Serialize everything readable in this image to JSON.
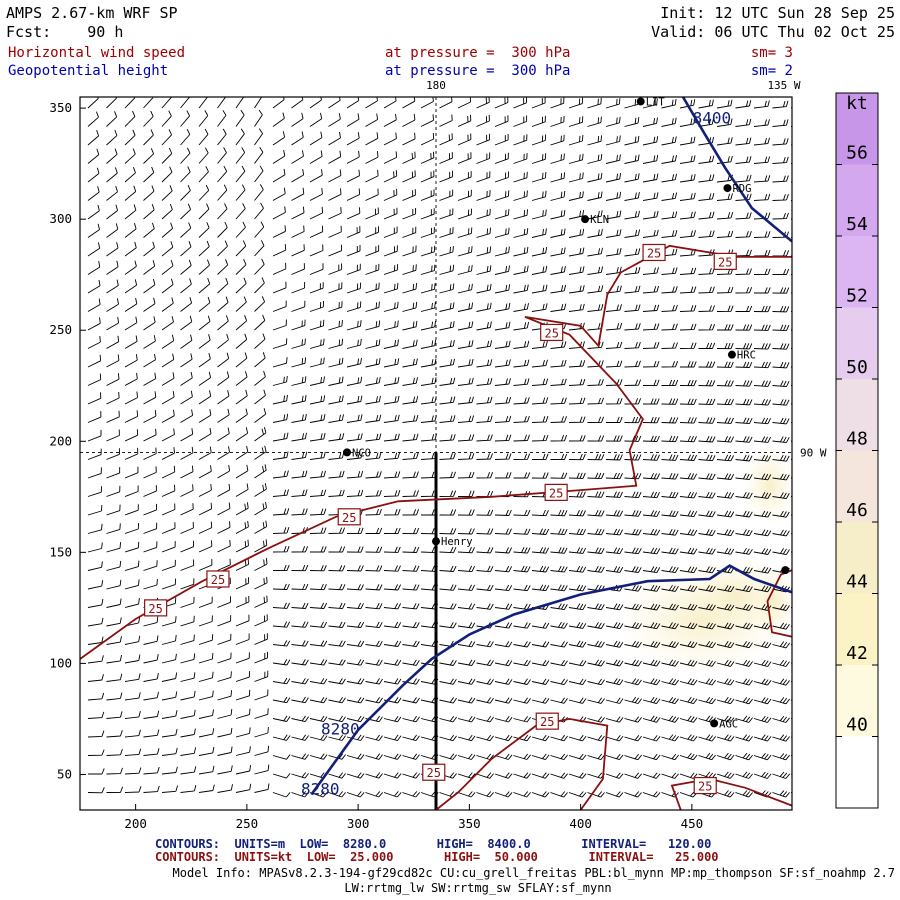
{
  "header": {
    "model": "AMPS 2.67-km WRF SP",
    "forecast": "Fcst:    90 h",
    "init": "Init: 12 UTC Sun 28 Sep 25",
    "valid": "Valid: 06 UTC Thu 02 Oct 25",
    "field1": "Horizontal wind speed",
    "field1_level": "at pressure =  300 hPa",
    "field1_sm": "sm= 3",
    "field2": "Geopotential height",
    "field2_level": "at pressure =  300 hPa",
    "field2_sm": "sm= 2"
  },
  "colors": {
    "title": "#000000",
    "wind_label": "#a00000",
    "height_label": "#0000b0",
    "height_contour": "#12207a",
    "wind_contour": "#8b1010",
    "barb": "#000000",
    "frame": "#000000"
  },
  "chart_data": {
    "type": "contour_map",
    "x_ticks": [
      200,
      250,
      300,
      350,
      400,
      450
    ],
    "y_ticks": [
      50,
      100,
      150,
      200,
      250,
      300,
      350
    ],
    "x_range": [
      175,
      495
    ],
    "y_range": [
      34,
      355
    ],
    "grid_lines": [
      {
        "label": "180",
        "axis": "x",
        "value": 335
      },
      {
        "label": "90 W",
        "axis": "y",
        "value": 195
      }
    ],
    "meridian_label_top": "135 W",
    "stations": [
      {
        "name": "LIT",
        "x": 427,
        "y": 353
      },
      {
        "name": "RDG",
        "x": 466,
        "y": 314
      },
      {
        "name": "KLN",
        "x": 402,
        "y": 300
      },
      {
        "name": "HRC",
        "x": 468,
        "y": 239
      },
      {
        "name": "NCO",
        "x": 295,
        "y": 195
      },
      {
        "name": "Henry",
        "x": 335,
        "y": 155
      },
      {
        "name": "AGC",
        "x": 460,
        "y": 73
      },
      {
        "name": "",
        "x": 492,
        "y": 142
      }
    ],
    "height_contour_labels": [
      {
        "text": "8400",
        "x": 459,
        "y": 343
      },
      {
        "text": "8280",
        "x": 292,
        "y": 68
      },
      {
        "text": "8280",
        "x": 283,
        "y": 41
      }
    ],
    "wind_contour_labels": [
      {
        "text": "25",
        "x": 209,
        "y": 125
      },
      {
        "text": "25",
        "x": 237,
        "y": 138
      },
      {
        "text": "25",
        "x": 296,
        "y": 166
      },
      {
        "text": "25",
        "x": 389,
        "y": 177
      },
      {
        "text": "25",
        "x": 387,
        "y": 249
      },
      {
        "text": "25",
        "x": 433,
        "y": 285
      },
      {
        "text": "25",
        "x": 465,
        "y": 281
      },
      {
        "text": "25",
        "x": 385,
        "y": 74
      },
      {
        "text": "25",
        "x": 334,
        "y": 51
      },
      {
        "text": "25",
        "x": 456,
        "y": 45
      }
    ],
    "height_contours": [
      {
        "value": 8280,
        "points": [
          [
            279,
            41
          ],
          [
            300,
            70
          ],
          [
            320,
            90
          ],
          [
            333,
            102
          ],
          [
            350,
            113
          ],
          [
            370,
            122
          ],
          [
            400,
            131
          ],
          [
            430,
            137
          ],
          [
            458,
            138
          ],
          [
            467,
            144
          ],
          [
            478,
            138
          ],
          [
            495,
            132
          ]
        ]
      },
      {
        "value": 8400,
        "points": [
          [
            446,
            355
          ],
          [
            456,
            338
          ],
          [
            465,
            323
          ],
          [
            477,
            305
          ],
          [
            495,
            290
          ]
        ]
      }
    ],
    "wind_contours": [
      {
        "value": 25,
        "points": [
          [
            175,
            102
          ],
          [
            200,
            120
          ],
          [
            230,
            137
          ],
          [
            260,
            152
          ],
          [
            290,
            166
          ],
          [
            318,
            173
          ],
          [
            360,
            175
          ],
          [
            400,
            178
          ],
          [
            425,
            180
          ],
          [
            422,
            196
          ],
          [
            428,
            210
          ],
          [
            416,
            226
          ],
          [
            395,
            248
          ],
          [
            375,
            256
          ],
          [
            400,
            252
          ],
          [
            408,
            243
          ],
          [
            412,
            266
          ],
          [
            418,
            276
          ],
          [
            440,
            288
          ],
          [
            470,
            283
          ],
          [
            495,
            283
          ]
        ]
      },
      {
        "value": 25,
        "points": [
          [
            335,
            34
          ],
          [
            345,
            42
          ],
          [
            360,
            57
          ],
          [
            380,
            72
          ],
          [
            395,
            75
          ],
          [
            412,
            72
          ],
          [
            410,
            48
          ],
          [
            400,
            34
          ]
        ]
      },
      {
        "value": 25,
        "points": [
          [
            445,
            34
          ],
          [
            441,
            45
          ],
          [
            458,
            48
          ],
          [
            474,
            44
          ],
          [
            495,
            36
          ]
        ]
      },
      {
        "value": 50,
        "points": [
          [
            495,
            112
          ],
          [
            486,
            114
          ],
          [
            484,
            128
          ],
          [
            490,
            140
          ],
          [
            495,
            142
          ]
        ]
      }
    ],
    "shaded_regions": [
      {
        "label": "42",
        "x": 455,
        "y": 120,
        "rx": 40,
        "ry": 25
      },
      {
        "label": "44",
        "x": 470,
        "y": 130,
        "rx": 25,
        "ry": 18
      },
      {
        "label": "48",
        "x": 487,
        "y": 128,
        "rx": 10,
        "ry": 16
      },
      {
        "label": "40",
        "x": 485,
        "y": 180,
        "rx": 12,
        "ry": 18
      }
    ],
    "colorbar": {
      "unit": "kt",
      "ticks": [
        40,
        42,
        44,
        46,
        48,
        50,
        52,
        54,
        56
      ],
      "range": [
        38,
        58
      ],
      "colors": [
        "#ffffff",
        "#fefae0",
        "#fbf2c6",
        "#f6eec8",
        "#f4e6dc",
        "#eedfe6",
        "#e6cdf0",
        "#dcb6f2",
        "#d4a8ee",
        "#c896e8"
      ]
    }
  },
  "footer": {
    "contours_height": "CONTOURS:  UNITS=m  LOW=  8280.0       HIGH=  8400.0       INTERVAL=   120.00",
    "contours_wind": "CONTOURS:  UNITS=kt  LOW=  25.000       HIGH=  50.000       INTERVAL=   25.000",
    "model_info": "Model Info: MPASv8.2.3-194-gf29cd82c CU:cu_grell_freitas PBL:bl_mynn MP:mp_thompson SF:sf_noahmp 2.7",
    "model_info2": "LW:rrtmg_lw SW:rrtmg_sw SFLAY:sf_mynn"
  }
}
